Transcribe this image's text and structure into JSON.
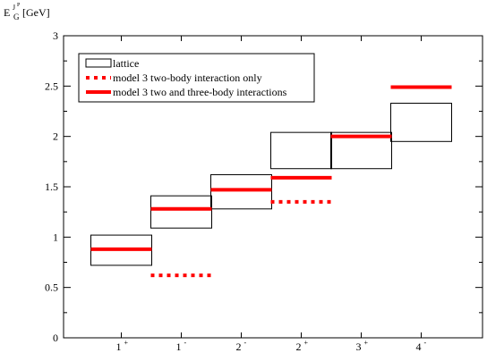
{
  "chart_data": {
    "type": "box-and-level",
    "ylabel": {
      "main": "E",
      "sup": "J",
      "supsup": "P",
      "sub": "G",
      "unit": "[GeV]"
    },
    "ylim": [
      0,
      3
    ],
    "yticks": [
      {
        "v": 0,
        "label": "0"
      },
      {
        "v": 0.5,
        "label": "0.5"
      },
      {
        "v": 1,
        "label": "1"
      },
      {
        "v": 1.5,
        "label": "1.5"
      },
      {
        "v": 2,
        "label": "2"
      },
      {
        "v": 2.5,
        "label": "2.5"
      },
      {
        "v": 3,
        "label": "3"
      }
    ],
    "categories": [
      {
        "main": "1",
        "sup": "+"
      },
      {
        "main": "1",
        "sup": "-"
      },
      {
        "main": "2",
        "sup": "-"
      },
      {
        "main": "2",
        "sup": "+"
      },
      {
        "main": "3",
        "sup": "+"
      },
      {
        "main": "4",
        "sup": "-"
      }
    ],
    "lattice": [
      {
        "low": 0.72,
        "high": 1.02
      },
      {
        "low": 1.09,
        "high": 1.41
      },
      {
        "low": 1.28,
        "high": 1.62
      },
      {
        "low": 1.68,
        "high": 2.04
      },
      {
        "low": 1.68,
        "high": 2.04
      },
      {
        "low": 1.95,
        "high": 2.33
      }
    ],
    "two_body": [
      null,
      0.62,
      null,
      1.35,
      null,
      null
    ],
    "two_three_body": [
      0.88,
      1.28,
      1.47,
      1.59,
      2.0,
      2.49
    ],
    "legend": [
      {
        "key": "lattice",
        "label": "lattice"
      },
      {
        "key": "two_body",
        "label": "model 3 two-body interaction only"
      },
      {
        "key": "two_three_body",
        "label": "model 3 two and three-body interactions"
      }
    ],
    "colors": {
      "model": "#ff0000",
      "frame": "#000000"
    }
  }
}
